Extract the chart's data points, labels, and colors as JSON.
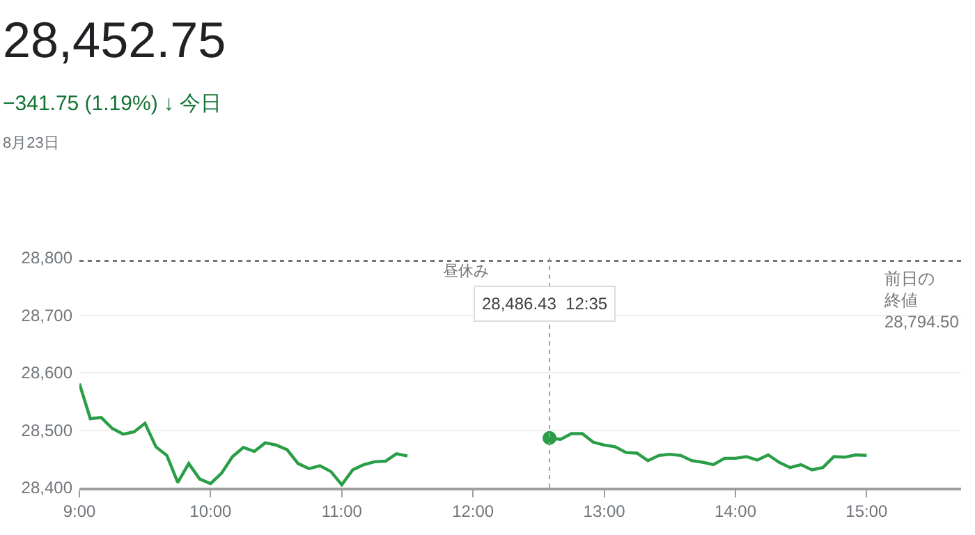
{
  "chart_data": {
    "type": "line",
    "title": "28,452.75",
    "subtitle": "−341.75 (1.19%) ↓ 今日",
    "annotations": [
      "8月23日",
      "昼休み",
      "28,486.43  12:35"
    ],
    "series": [
      {
        "color": "#2a9d47",
        "x": [
          9.0,
          9.0833,
          9.1667,
          9.25,
          9.3333,
          9.4167,
          9.5,
          9.5833,
          9.6667,
          9.75,
          9.8333,
          9.9167,
          10.0,
          10.0833,
          10.1667,
          10.25,
          10.3333,
          10.4167,
          10.5,
          10.5833,
          10.6667,
          10.75,
          10.8333,
          10.9167,
          11.0,
          11.0833,
          11.1667,
          11.25,
          11.3333,
          11.4167,
          11.5
        ],
        "values": [
          28581,
          28520,
          28522,
          28503,
          28493,
          28497,
          28512,
          28471,
          28456,
          28409,
          28442,
          28415,
          28407,
          28425,
          28454,
          28470,
          28463,
          28478,
          28474,
          28466,
          28442,
          28433,
          28438,
          28428,
          28405,
          28431,
          28440,
          28445,
          28446,
          28459,
          28455
        ]
      },
      {
        "color": "#2a9d47",
        "x": [
          12.5833,
          12.6667,
          12.75,
          12.8333,
          12.9167,
          13.0,
          13.0833,
          13.1667,
          13.25,
          13.3333,
          13.4167,
          13.5,
          13.5833,
          13.6667,
          13.75,
          13.8333,
          13.9167,
          14.0,
          14.0833,
          14.1667,
          14.25,
          14.3333,
          14.4167,
          14.5,
          14.5833,
          14.6667,
          14.75,
          14.8333,
          14.9167,
          15.0
        ],
        "values": [
          28486.43,
          28484,
          28494,
          28494,
          28479,
          28474,
          28471,
          28461,
          28460,
          28447,
          28456,
          28458,
          28456,
          28447,
          28444,
          28440,
          28451,
          28451,
          28454,
          28448,
          28457,
          28444,
          28435,
          28440,
          28431,
          28435,
          28454,
          28453,
          28457,
          28456
        ]
      },
      {
        "type": "scatter",
        "color": "#2a9d47",
        "x": [
          12.5833
        ],
        "values": [
          28486.43
        ]
      }
    ],
    "ref_lines": [
      {
        "axis": "y",
        "value": 28794.5,
        "label": "前日の終値\n28,794.50",
        "color": "#757575",
        "line_style": "dotted"
      },
      {
        "axis": "x",
        "value": 12.5833,
        "color": "#9e9e9e",
        "line_style": "dotted"
      }
    ],
    "xlim": [
      9,
      15.72
    ],
    "xticks": [
      {
        "value": 9,
        "label": "9:00"
      },
      {
        "value": 10,
        "label": "10:00"
      },
      {
        "value": 11,
        "label": "11:00"
      },
      {
        "value": 12,
        "label": "12:00"
      },
      {
        "value": 13,
        "label": "13:00"
      },
      {
        "value": 14,
        "label": "14:00"
      },
      {
        "value": 15,
        "label": "15:00"
      }
    ],
    "ylim": [
      28400,
      28800
    ],
    "yticks": [
      {
        "value": 28400,
        "label": "28,400"
      },
      {
        "value": 28500,
        "label": "28,500"
      },
      {
        "value": 28600,
        "label": "28,600"
      },
      {
        "value": 28700,
        "label": "28,700"
      },
      {
        "value": 28800,
        "label": "28,800"
      }
    ],
    "grid": "y"
  }
}
